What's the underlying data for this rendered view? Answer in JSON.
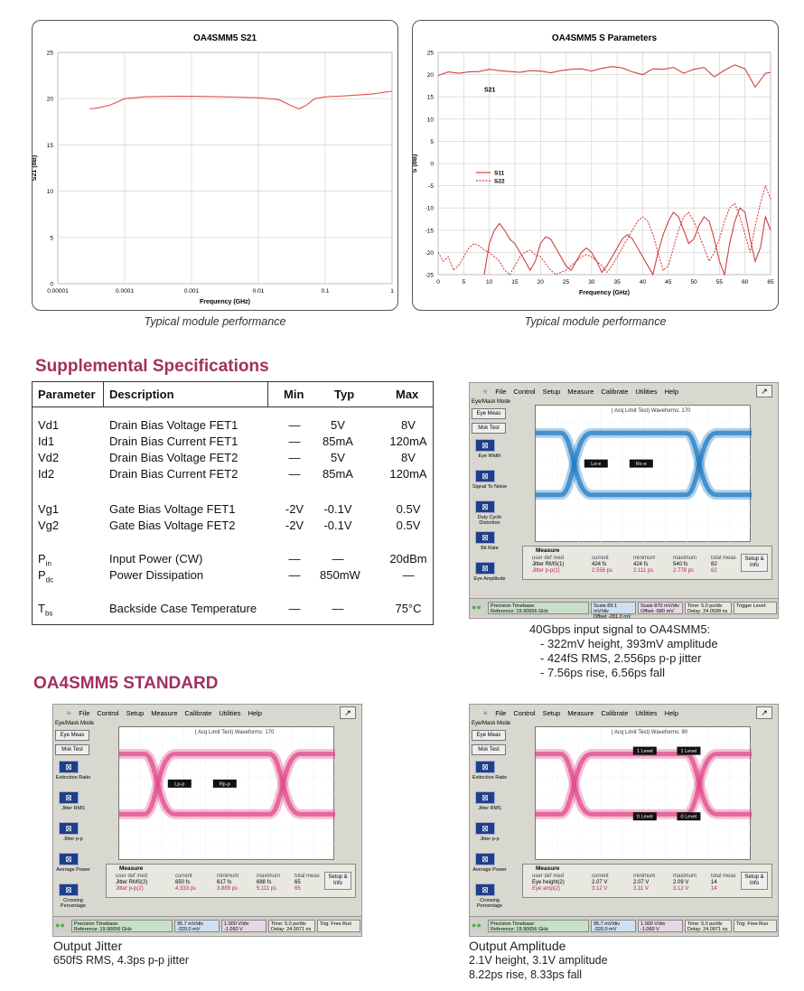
{
  "chart_data": [
    {
      "type": "line",
      "title": "OA4SMM5 S21",
      "xlabel": "Frequency (GHz)",
      "ylabel": "S21 (dB)",
      "xscale": "log",
      "xlim": [
        1e-05,
        1
      ],
      "ylim": [
        0,
        25
      ],
      "x_ticks": [
        "0.00001",
        "0.0001",
        "0.001",
        "0.01",
        "0.1",
        "1"
      ],
      "y_ticks": [
        "0",
        "5",
        "10",
        "15",
        "20",
        "25"
      ],
      "grid": true,
      "color": "#e05050",
      "series": [
        {
          "x": [
            3e-05,
            4e-05,
            6e-05,
            0.0001,
            0.0002,
            0.0005,
            0.001,
            0.003,
            0.01,
            0.02,
            0.03,
            0.04,
            0.05,
            0.07,
            0.1,
            0.2,
            0.5,
            1
          ],
          "values": [
            18.9,
            19.0,
            19.3,
            20.0,
            20.2,
            20.25,
            20.25,
            20.2,
            20.1,
            19.9,
            19.3,
            18.9,
            19.2,
            20.0,
            20.2,
            20.3,
            20.5,
            20.8
          ]
        }
      ]
    },
    {
      "type": "line",
      "title": "OA4SMM5 S Parameters",
      "xlabel": "Frequency (GHz)",
      "ylabel": "S (dB)",
      "xlim": [
        0,
        65
      ],
      "ylim": [
        -25,
        25
      ],
      "x_ticks": [
        "0",
        "5",
        "10",
        "15",
        "20",
        "25",
        "30",
        "35",
        "40",
        "45",
        "50",
        "55",
        "60",
        "65"
      ],
      "y_ticks": [
        "25",
        "20",
        "15",
        "10",
        "5",
        "0",
        "-5",
        "-10",
        "-15",
        "-20",
        "-25"
      ],
      "grid": true,
      "legend": "center-left",
      "annotations": [
        "S21"
      ],
      "series": [
        {
          "name": "S11",
          "color": "#d04040",
          "x": [
            9,
            10,
            11,
            12,
            13,
            14,
            15,
            16,
            17,
            18,
            19,
            20,
            21,
            22,
            23,
            24,
            25,
            26,
            27,
            28,
            29,
            30,
            31,
            32,
            33,
            34,
            35,
            36,
            37,
            38,
            39,
            40,
            41,
            42,
            43,
            44,
            45,
            46,
            47,
            48,
            49,
            50,
            51,
            52,
            53,
            54,
            55,
            56,
            57,
            58,
            59,
            60,
            61,
            62,
            63,
            64,
            65
          ],
          "values": [
            -25,
            -18,
            -15,
            -13.5,
            -15,
            -17,
            -18,
            -20,
            -22,
            -24,
            -22,
            -18,
            -16.5,
            -17,
            -19,
            -21,
            -23,
            -24,
            -22,
            -20,
            -19,
            -20,
            -22,
            -24.5,
            -23,
            -21,
            -19,
            -17,
            -16,
            -17,
            -19,
            -21,
            -23,
            -25,
            -20,
            -16,
            -13,
            -11,
            -12,
            -15,
            -18,
            -17,
            -14,
            -12,
            -13,
            -17,
            -22,
            -25,
            -18,
            -13,
            -10,
            -11,
            -17,
            -22,
            -19,
            -12,
            -15
          ]
        },
        {
          "name": "S22",
          "color": "#d04040",
          "dashed": true,
          "x": [
            0,
            1,
            2,
            3,
            4,
            5,
            6,
            7,
            8,
            9,
            10,
            11,
            12,
            13,
            14,
            15,
            16,
            17,
            18,
            19,
            20,
            21,
            22,
            23,
            24,
            25,
            26,
            27,
            28,
            29,
            30,
            31,
            32,
            33,
            34,
            35,
            36,
            37,
            38,
            39,
            40,
            41,
            42,
            43,
            44,
            45,
            46,
            47,
            48,
            49,
            50,
            51,
            52,
            53,
            54,
            55,
            56,
            57,
            58,
            59,
            60,
            61,
            62,
            63,
            64,
            65
          ],
          "values": [
            -20,
            -22,
            -21,
            -24,
            -23,
            -21,
            -19,
            -18,
            -18.5,
            -19.5,
            -20,
            -21,
            -22,
            -24,
            -25,
            -23,
            -21,
            -20,
            -19.5,
            -20.5,
            -21,
            -22.5,
            -24,
            -25,
            -24.5,
            -24,
            -23,
            -22,
            -21,
            -20.5,
            -21,
            -22,
            -23,
            -24.5,
            -23,
            -21,
            -19,
            -17,
            -15,
            -13,
            -12,
            -13,
            -16,
            -20,
            -24,
            -23,
            -19,
            -15,
            -12,
            -11,
            -13,
            -16,
            -19,
            -22,
            -20,
            -17,
            -13,
            -10,
            -9,
            -12,
            -16,
            -20,
            -14,
            -9,
            -5,
            -8
          ]
        },
        {
          "name": "S21",
          "color": "#d04040",
          "x": [
            0,
            2,
            4,
            6,
            8,
            10,
            12,
            14,
            16,
            18,
            20,
            22,
            24,
            26,
            28,
            30,
            32,
            34,
            36,
            38,
            40,
            42,
            44,
            46,
            48,
            50,
            52,
            54,
            56,
            58,
            60,
            62,
            64,
            65
          ],
          "values": [
            19.8,
            20.6,
            20.3,
            20.6,
            20.7,
            21.2,
            20.9,
            20.7,
            20.5,
            20.9,
            20.8,
            20.4,
            20.9,
            21.2,
            21.3,
            20.8,
            21.4,
            21.8,
            21.5,
            20.6,
            20.0,
            21.3,
            21.2,
            21.6,
            20.3,
            21.2,
            21.6,
            19.5,
            21.0,
            22.2,
            21.3,
            17.2,
            20.3,
            20.5
          ]
        }
      ]
    }
  ],
  "captions": {
    "left": "Typical module performance",
    "right": "Typical module performance"
  },
  "supplemental": {
    "title": "Supplemental Specifications",
    "headers": {
      "parameter": "Parameter",
      "description": "Description",
      "min": "Min",
      "typ": "Typ",
      "max": "Max"
    },
    "rows": [
      {
        "p": "Vd1",
        "sub": "",
        "d": "Drain Bias Voltage FET1",
        "min": "—",
        "typ": "5V",
        "max": "8V"
      },
      {
        "p": "Id1",
        "sub": "",
        "d": "Drain Bias Current FET1",
        "min": "—",
        "typ": "85mA",
        "max": "120mA"
      },
      {
        "p": "Vd2",
        "sub": "",
        "d": "Drain Bias Voltage FET2",
        "min": "—",
        "typ": "5V",
        "max": "8V"
      },
      {
        "p": "Id2",
        "sub": "",
        "d": "Drain Bias Current FET2",
        "min": "—",
        "typ": "85mA",
        "max": "120mA"
      },
      {
        "p": "Vg1",
        "sub": "",
        "d": "Gate Bias Voltage FET1",
        "min": "-2V",
        "typ": "-0.1V",
        "max": "0.5V"
      },
      {
        "p": "Vg2",
        "sub": "",
        "d": "Gate Bias Voltage FET2",
        "min": "-2V",
        "typ": "-0.1V",
        "max": "0.5V"
      },
      {
        "p": "P",
        "sub": "in",
        "d": "Input Power (CW)",
        "min": "—",
        "typ": "—",
        "max": "20dBm"
      },
      {
        "p": "P",
        "sub": "dc",
        "d": "Power Dissipation",
        "min": "—",
        "typ": "850mW",
        "max": "—"
      },
      {
        "p": "T",
        "sub": "bs",
        "d": "Backside Case Temperature",
        "min": "—",
        "typ": "—",
        "max": "75°C"
      }
    ]
  },
  "standard_title": "OA4SMM5 STANDARD",
  "scope_common": {
    "menu": [
      "File",
      "Control",
      "Setup",
      "Measure",
      "Calibrate",
      "Utilities",
      "Help"
    ],
    "mode": "Eye/Mask Mode",
    "eye_meas": "Eye Meas",
    "msk_test": "Msk Test",
    "measure_tab": "Measure",
    "setup_info": "Setup & Info",
    "precision_timebase": "Precision Timebase:",
    "reference": "Reference: 19.90656 GHz",
    "time": "Time: 5.0 ps/div",
    "trigger": "Trigger Level:",
    "trig_free": "Trig: Free Run",
    "pattern_lock": "Pattern Lock"
  },
  "scopes": [
    {
      "id": "input",
      "header": "( Acq Limit Test)  Waveforms: 170",
      "tools": [
        "Eye Width",
        "Signal To Noise",
        "Duty Cycle Distortion",
        "Bit Rate",
        "Eye Amplitude"
      ],
      "markers": [
        "Lo-e",
        "Ro-e"
      ],
      "meas_rows": [
        [
          "Jitter RMS(1)",
          "424 fs",
          "424 fs",
          "540 fs",
          "82"
        ],
        [
          "Jitter p-p(1)",
          "2.556 ps",
          "2.111 ps",
          "2.778 ps",
          "82"
        ]
      ],
      "meas_head": [
        "user def med",
        "current",
        "minimum",
        "maximum",
        "total meas"
      ],
      "chan1": "Scale 89.1 mV/div",
      "chan1b": "Offset -281.0 mV",
      "chan2": "Scale 870 mV/div",
      "chan2b": "Offset -580 mV",
      "delay": "Delay: 24.0598 ns",
      "desc_lines": [
        "40Gbps input signal to OA4SMM5:",
        "- 322mV height, 393mV amplitude",
        "- 424fS RMS, 2.556ps p-p jitter",
        "- 7.56ps rise, 6.56ps fall"
      ],
      "eye_color": "#1f7cc4"
    },
    {
      "id": "jitter",
      "header": "( Acq Limit Test)  Waveforms: 170",
      "tools": [
        "Extinction Ratio",
        "Jitter RMS",
        "Jitter p-p",
        "Average Power",
        "Crossing Percentage"
      ],
      "markers": [
        "Lp-p",
        "Rp-p"
      ],
      "meas_rows": [
        [
          "Jitter RMS(2)",
          "650 fs",
          "617 fs",
          "688 fs",
          "65"
        ],
        [
          "Jitter p-p(2)",
          "4.333 ps",
          "3.889 ps",
          "5.111 ps",
          "65"
        ]
      ],
      "meas_head": [
        "user def med",
        "current",
        "minimum",
        "maximum",
        "total meas"
      ],
      "chan1": "95.7 mV/div",
      "chan1b": "-320.0 mV",
      "chan2": "1.000 V/div",
      "chan2b": "-1.060 V",
      "delay": "Delay: 24.0971 ns",
      "desc_lines": [
        "Output Jitter",
        "650fS RMS, 4.3ps p-p jitter"
      ],
      "eye_color": "#e04a8a"
    },
    {
      "id": "amplitude",
      "header": "( Acq Limit Test)  Waveforms: 90",
      "tools": [
        "Extinction Ratio",
        "Jitter RMS",
        "Jitter p-p",
        "Average Power",
        "Crossing Percentage"
      ],
      "markers": [
        "1 Level",
        "1 Level",
        "0 Level",
        "0 Level"
      ],
      "meas_rows": [
        [
          "Eye height(2)",
          "2.07 V",
          "2.07 V",
          "2.09 V",
          "14"
        ],
        [
          "Eye amp(2)",
          "3.12 V",
          "3.11 V",
          "3.12 V",
          "14"
        ]
      ],
      "meas_head": [
        "user def med",
        "current",
        "minimum",
        "maximum",
        "total meas"
      ],
      "chan1": "95.7 mV/div",
      "chan1b": "-320.0 mV",
      "chan2": "1.000 V/div",
      "chan2b": "-1.060 V",
      "delay": "Delay: 24.0971 ns",
      "desc_lines": [
        "Output Amplitude",
        "2.1V height, 3.1V amplitude",
        "8.22ps rise, 8.33ps fall"
      ],
      "eye_color": "#e04a8a"
    }
  ]
}
